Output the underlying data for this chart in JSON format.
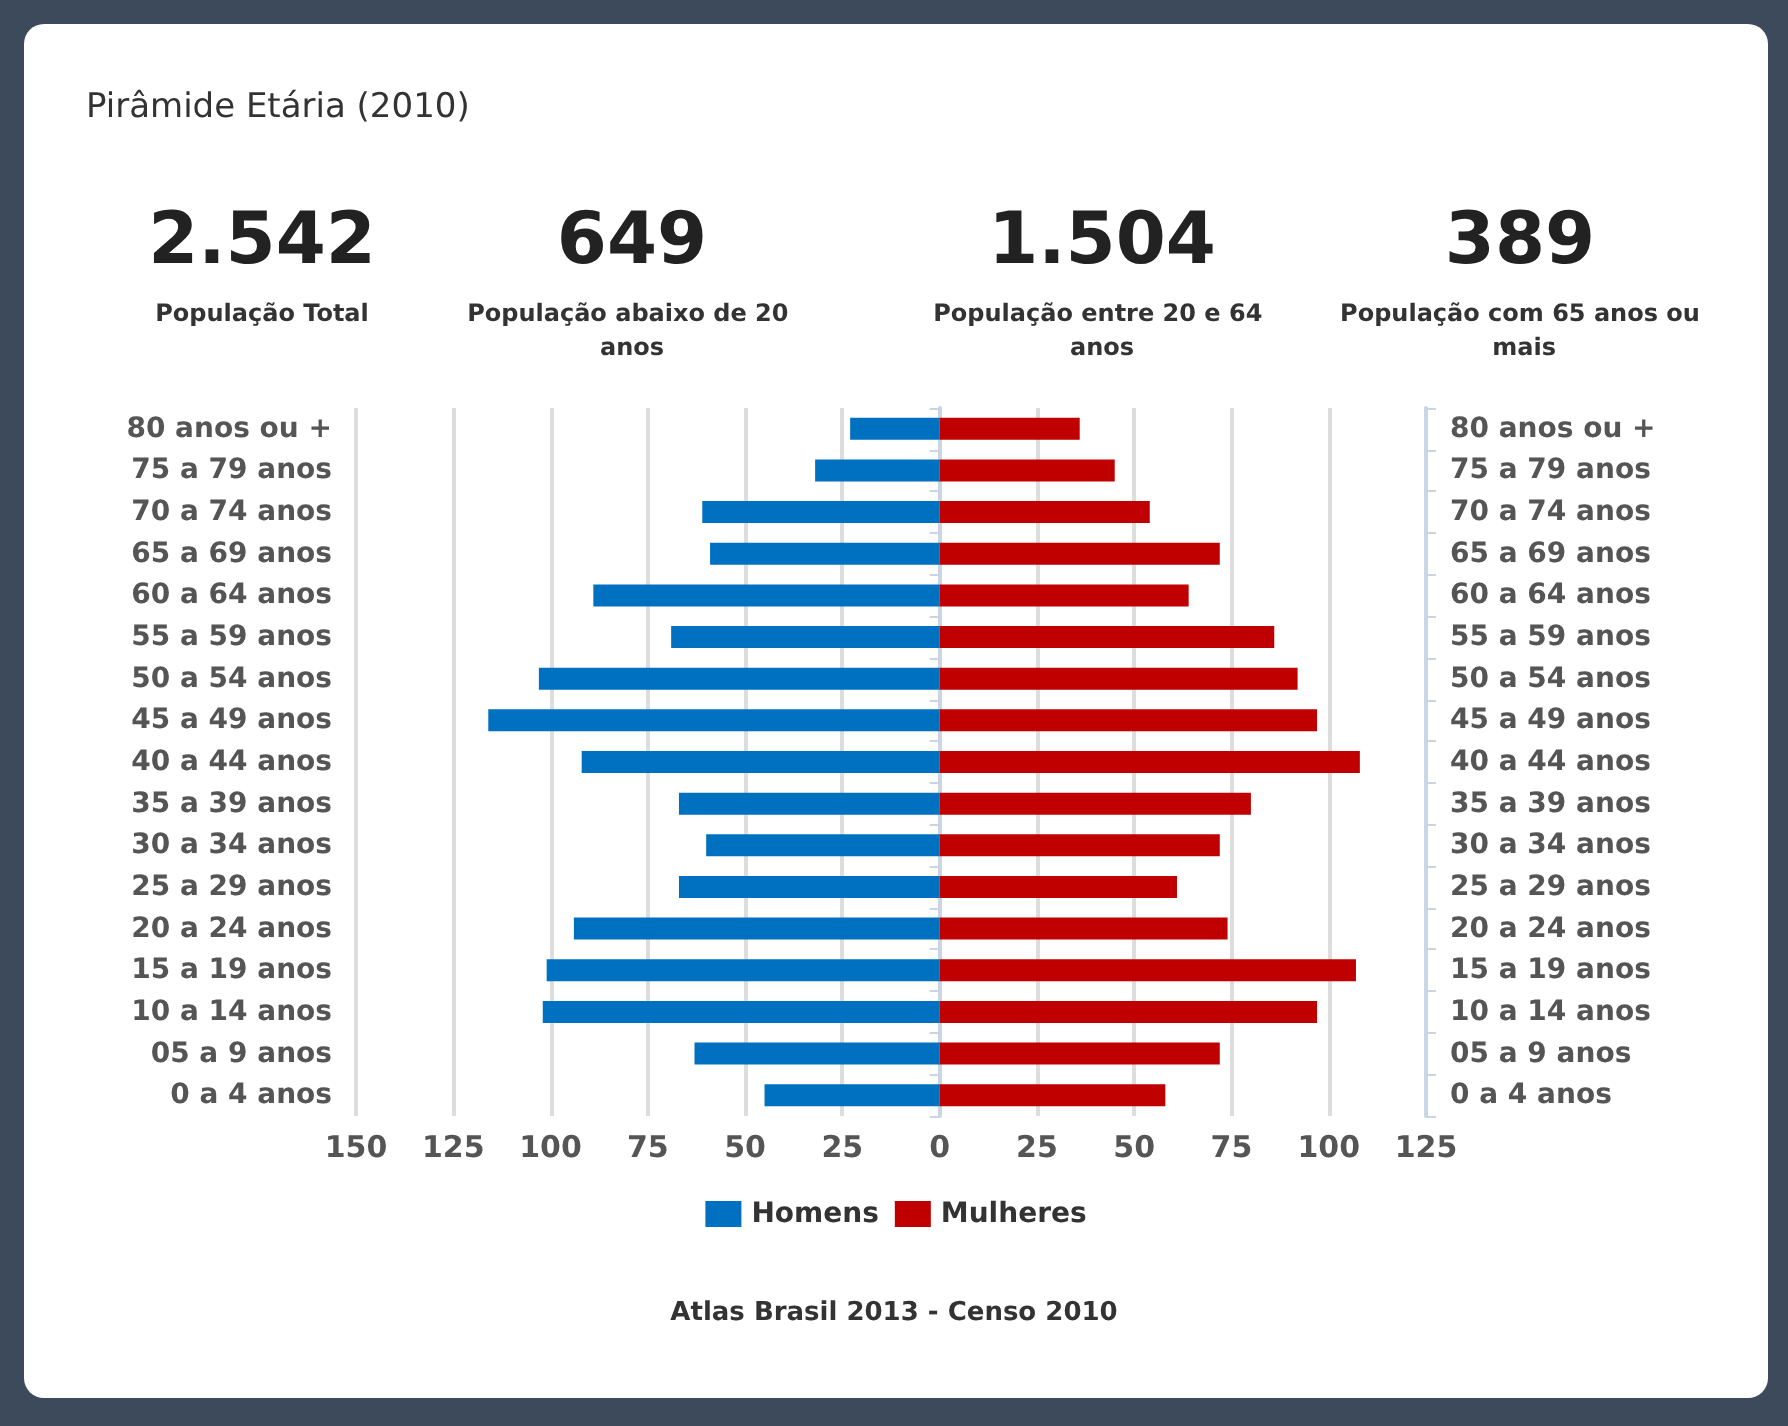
{
  "chart_data": {
    "type": "bar",
    "orientation": "horizontal",
    "stacked": true,
    "title": "Pirâmide Etária (2010)",
    "categories": [
      "80 anos ou +",
      "75 a 79 anos",
      "70 a 74 anos",
      "65 a 69 anos",
      "60 a 64 anos",
      "55 a 59 anos",
      "50 a 54 anos",
      "45 a 49 anos",
      "40 a 44 anos",
      "35 a 39 anos",
      "30 a 34 anos",
      "25 a 29 anos",
      "20 a 24 anos",
      "15 a 19 anos",
      "10 a 14 anos",
      "05 a 9 anos",
      "0 a 4 anos"
    ],
    "series": [
      {
        "name": "Homens",
        "color": "#0070c0",
        "values": [
          -23,
          -32,
          -61,
          -59,
          -89,
          -69,
          -103,
          -116,
          -92,
          -67,
          -60,
          -67,
          -94,
          -101,
          -102,
          -63,
          -45
        ]
      },
      {
        "name": "Mulheres",
        "color": "#c00000",
        "values": [
          36,
          45,
          54,
          72,
          64,
          86,
          92,
          97,
          108,
          80,
          72,
          61,
          74,
          107,
          97,
          72,
          58
        ]
      }
    ],
    "xlim": [
      -150,
      125
    ],
    "xticks": [
      {
        "value": -150,
        "label": "150"
      },
      {
        "value": -125,
        "label": "125"
      },
      {
        "value": -100,
        "label": "100"
      },
      {
        "value": -75,
        "label": "75"
      },
      {
        "value": -50,
        "label": "50"
      },
      {
        "value": -25,
        "label": "25"
      },
      0,
      25,
      50,
      75,
      100,
      125
    ],
    "grid": "x",
    "legend": "bottom",
    "annotations": [
      "2.542",
      "População Total",
      "649",
      "População abaixo de 20 anos",
      "1.504",
      "População entre 20 e 64 anos",
      "389",
      "População com 65 anos ou mais",
      "Atlas Brasil 2013 - Censo 2010"
    ]
  }
}
